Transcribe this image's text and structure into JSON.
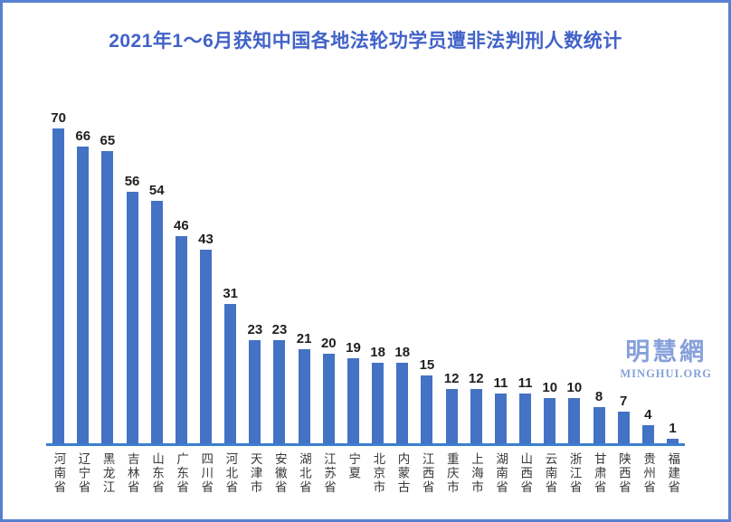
{
  "title": "2021年1～6月获知中国各地法轮功学员遭非法判刑人数统计",
  "watermark": {
    "cn": "明慧網",
    "en": "MINGHUI.ORG"
  },
  "colors": {
    "bar": "#4472C4",
    "axis_line": "#3C7ED2",
    "title_text": "#4162C8",
    "frame_border": "#5880D1",
    "value_label": "#1F1F1F",
    "category_label": "#383838",
    "watermark": "#86A0DA",
    "background": "#FFFFFF"
  },
  "chart_data": {
    "type": "bar",
    "title": "2021年1～6月获知中国各地法轮功学员遭非法判刑人数统计",
    "categories": [
      "河南省",
      "辽宁省",
      "黑龙江",
      "吉林省",
      "山东省",
      "广东省",
      "四川省",
      "河北省",
      "天津市",
      "安徽省",
      "湖北省",
      "江苏省",
      "宁夏",
      "北京市",
      "内蒙古",
      "江西省",
      "重庆市",
      "上海市",
      "湖南省",
      "山西省",
      "云南省",
      "浙江省",
      "甘肃省",
      "陕西省",
      "贵州省",
      "福建省"
    ],
    "values": [
      70,
      66,
      65,
      56,
      54,
      46,
      43,
      31,
      23,
      23,
      21,
      20,
      19,
      18,
      18,
      15,
      12,
      12,
      11,
      11,
      10,
      10,
      8,
      7,
      4,
      1
    ],
    "xlabel": "",
    "ylabel": "",
    "ylim": [
      0,
      75
    ],
    "grid": false,
    "legend": "none",
    "value_labels": true,
    "orientation": "vertical"
  }
}
